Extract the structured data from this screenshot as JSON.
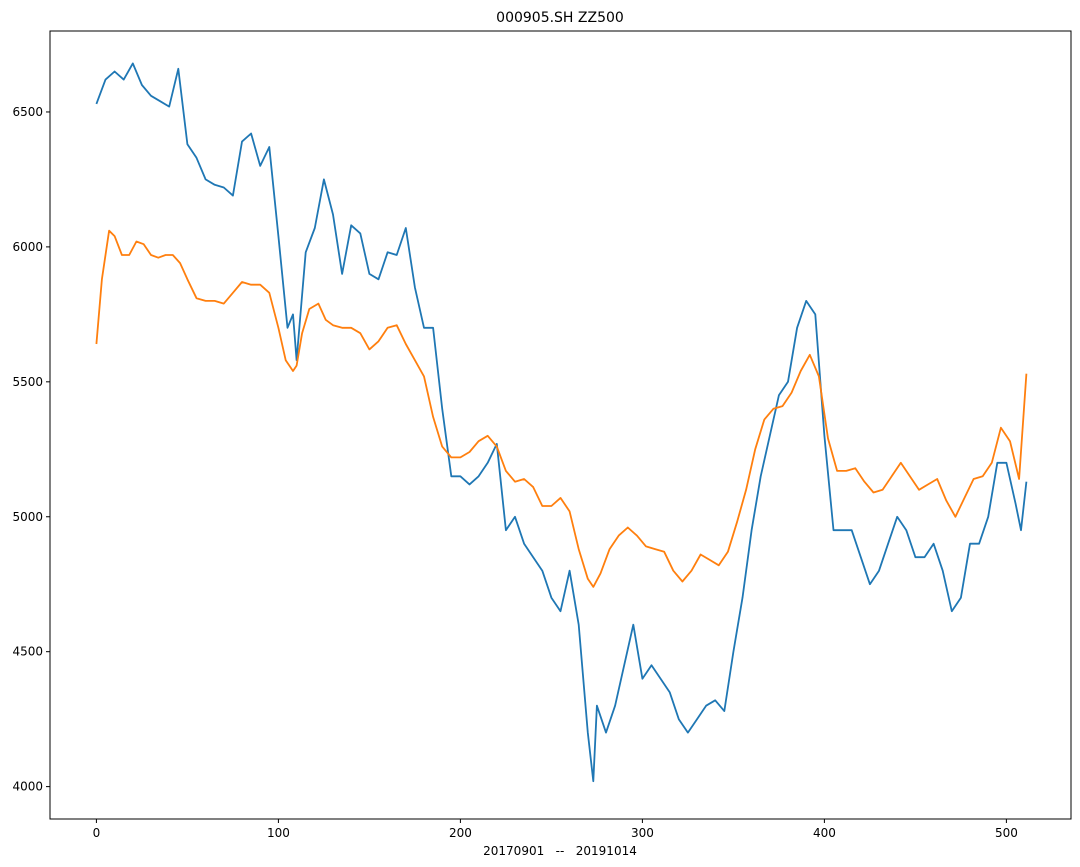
{
  "chart_data": {
    "type": "line",
    "title": "000905.SH  ZZ500",
    "xlabel": "20170901   --   20191014",
    "ylabel": "",
    "xlim": [
      -25.5,
      535.5
    ],
    "ylim": [
      3880,
      6800
    ],
    "xticks": [
      0,
      100,
      200,
      300,
      400,
      500
    ],
    "yticks": [
      4000,
      4500,
      5000,
      5500,
      6000,
      6500
    ],
    "grid": false,
    "legend": "none",
    "series": [
      {
        "color": "#1f77b4",
        "x": [
          0,
          5,
          10,
          15,
          20,
          25,
          30,
          35,
          40,
          45,
          50,
          55,
          60,
          65,
          70,
          75,
          80,
          85,
          90,
          95,
          100,
          105,
          108,
          110,
          115,
          120,
          125,
          130,
          135,
          140,
          145,
          150,
          155,
          160,
          165,
          170,
          175,
          180,
          185,
          190,
          195,
          200,
          205,
          210,
          215,
          220,
          225,
          230,
          235,
          240,
          245,
          250,
          255,
          260,
          265,
          270,
          273,
          275,
          280,
          285,
          290,
          295,
          300,
          305,
          310,
          315,
          320,
          325,
          330,
          335,
          340,
          345,
          350,
          355,
          360,
          365,
          370,
          375,
          380,
          385,
          390,
          395,
          400,
          405,
          410,
          415,
          420,
          425,
          430,
          435,
          440,
          445,
          450,
          455,
          460,
          465,
          470,
          475,
          480,
          485,
          490,
          495,
          500,
          505,
          508,
          511
        ],
        "y": [
          6530,
          6620,
          6650,
          6620,
          6680,
          6600,
          6560,
          6540,
          6520,
          6660,
          6380,
          6330,
          6250,
          6230,
          6220,
          6190,
          6390,
          6420,
          6300,
          6370,
          6040,
          5700,
          5750,
          5580,
          5980,
          6070,
          6250,
          6120,
          5900,
          6080,
          6050,
          5900,
          5880,
          5980,
          5970,
          6070,
          5850,
          5700,
          5700,
          5400,
          5150,
          5150,
          5120,
          5150,
          5200,
          5270,
          4950,
          5000,
          4900,
          4850,
          4800,
          4700,
          4650,
          4800,
          4600,
          4200,
          4020,
          4300,
          4200,
          4300,
          4450,
          4600,
          4400,
          4450,
          4400,
          4350,
          4250,
          4200,
          4250,
          4300,
          4320,
          4280,
          4500,
          4700,
          4950,
          5150,
          5300,
          5450,
          5500,
          5700,
          5800,
          5750,
          5300,
          4950,
          4950,
          4950,
          4850,
          4750,
          4800,
          4900,
          5000,
          4950,
          4850,
          4850,
          4900,
          4800,
          4650,
          4700,
          4900,
          4900,
          5000,
          5200,
          5200,
          5050,
          4950,
          5130
        ]
      },
      {
        "color": "#ff7f0e",
        "x": [
          0,
          3,
          7,
          10,
          14,
          18,
          22,
          26,
          30,
          34,
          38,
          42,
          46,
          50,
          55,
          60,
          65,
          70,
          75,
          80,
          85,
          90,
          95,
          100,
          104,
          108,
          110,
          113,
          117,
          122,
          126,
          130,
          135,
          140,
          145,
          150,
          155,
          160,
          165,
          170,
          175,
          180,
          185,
          190,
          195,
          200,
          205,
          210,
          215,
          220,
          225,
          230,
          235,
          240,
          245,
          250,
          255,
          260,
          265,
          270,
          273,
          277,
          282,
          287,
          292,
          297,
          302,
          307,
          312,
          317,
          322,
          327,
          332,
          337,
          342,
          347,
          352,
          357,
          362,
          367,
          372,
          377,
          382,
          387,
          392,
          397,
          402,
          407,
          412,
          417,
          422,
          427,
          432,
          437,
          442,
          447,
          452,
          457,
          462,
          467,
          472,
          477,
          482,
          487,
          492,
          497,
          502,
          507,
          511
        ],
        "y": [
          5640,
          5880,
          6060,
          6040,
          5970,
          5970,
          6020,
          6010,
          5970,
          5960,
          5970,
          5970,
          5940,
          5880,
          5810,
          5800,
          5800,
          5790,
          5830,
          5870,
          5860,
          5860,
          5830,
          5700,
          5580,
          5540,
          5560,
          5680,
          5770,
          5790,
          5730,
          5710,
          5700,
          5700,
          5680,
          5620,
          5650,
          5700,
          5710,
          5640,
          5580,
          5520,
          5370,
          5260,
          5220,
          5220,
          5240,
          5280,
          5300,
          5260,
          5170,
          5130,
          5140,
          5110,
          5040,
          5040,
          5070,
          5020,
          4880,
          4770,
          4740,
          4790,
          4880,
          4930,
          4960,
          4930,
          4890,
          4880,
          4870,
          4800,
          4760,
          4800,
          4860,
          4840,
          4820,
          4870,
          4980,
          5100,
          5250,
          5360,
          5400,
          5410,
          5460,
          5540,
          5600,
          5520,
          5290,
          5170,
          5170,
          5180,
          5130,
          5090,
          5100,
          5150,
          5200,
          5150,
          5100,
          5120,
          5140,
          5060,
          5000,
          5070,
          5140,
          5150,
          5200,
          5330,
          5280,
          5140,
          5530
        ]
      }
    ]
  }
}
